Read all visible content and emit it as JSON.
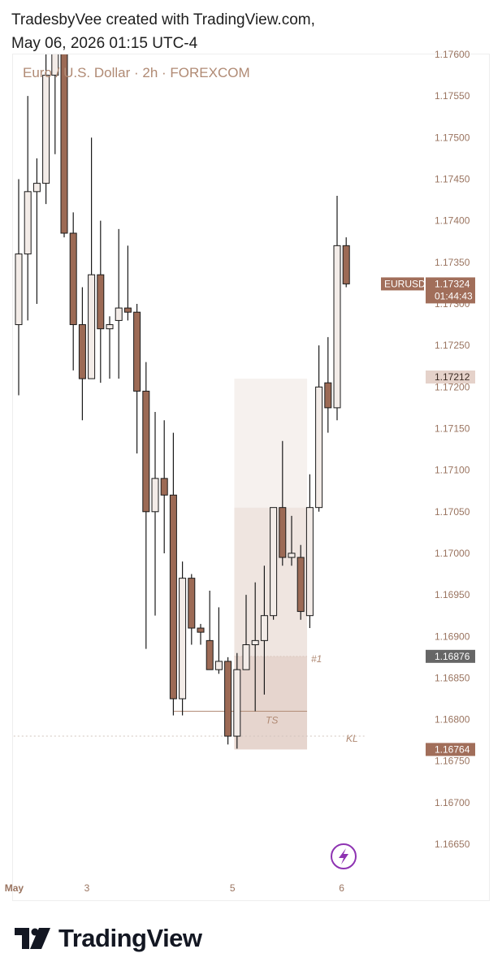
{
  "header": {
    "line1": "TradesbyVee created with TradingView.com,",
    "line2": "May 06, 2026 01:15 UTC-4"
  },
  "footer": {
    "brand": "TradingView"
  },
  "colors": {
    "bull_fill": "#f3ece8",
    "bear_fill": "#9c6a55",
    "candle_outline": "#1a1a1a",
    "axis_text": "#9a7460",
    "zone_upper": "#f6f1ee",
    "zone_middle": "#efe5e0",
    "zone_lower": "#e6d5ce",
    "level_line": "#b08a74",
    "price_badge": "#a16e5a",
    "gray_badge": "#666666",
    "light_badge": "#e5d2ca",
    "accent_purple": "#8e33b2"
  },
  "chart_data": {
    "type": "candlestick",
    "title": "Euro / U.S. Dollar · 2h · FOREXCOM",
    "symbol": "EURUSD",
    "ylim": [
      1.1661,
      1.176
    ],
    "y_ticks": [
      "1.17600",
      "1.17550",
      "1.17500",
      "1.17450",
      "1.17400",
      "1.17350",
      "1.17300",
      "1.17250",
      "1.17200",
      "1.17150",
      "1.17100",
      "1.17050",
      "1.17000",
      "1.16950",
      "1.16900",
      "1.16850",
      "1.16800",
      "1.16750",
      "1.16700",
      "1.16650"
    ],
    "x_ticks": [
      {
        "label": "May",
        "bar": -0.5
      },
      {
        "label": "3",
        "bar": 7.5
      },
      {
        "label": "5",
        "bar": 23.5
      },
      {
        "label": "6",
        "bar": 35.5
      }
    ],
    "candles": [
      {
        "o": 1.17275,
        "h": 1.1745,
        "l": 1.1719,
        "c": 1.1736
      },
      {
        "o": 1.1736,
        "h": 1.1755,
        "l": 1.1728,
        "c": 1.17435
      },
      {
        "o": 1.17435,
        "h": 1.17475,
        "l": 1.173,
        "c": 1.17445
      },
      {
        "o": 1.17445,
        "h": 1.1762,
        "l": 1.1742,
        "c": 1.17575
      },
      {
        "o": 1.17575,
        "h": 1.1763,
        "l": 1.1748,
        "c": 1.1762
      },
      {
        "o": 1.1762,
        "h": 1.1764,
        "l": 1.1738,
        "c": 1.17385
      },
      {
        "o": 1.17385,
        "h": 1.1741,
        "l": 1.1722,
        "c": 1.17275
      },
      {
        "o": 1.17275,
        "h": 1.1732,
        "l": 1.1716,
        "c": 1.1721
      },
      {
        "o": 1.1721,
        "h": 1.175,
        "l": 1.1721,
        "c": 1.17335
      },
      {
        "o": 1.17335,
        "h": 1.174,
        "l": 1.17205,
        "c": 1.1727
      },
      {
        "o": 1.1727,
        "h": 1.17285,
        "l": 1.1721,
        "c": 1.17275
      },
      {
        "o": 1.1728,
        "h": 1.1739,
        "l": 1.1721,
        "c": 1.17295
      },
      {
        "o": 1.17295,
        "h": 1.1737,
        "l": 1.1728,
        "c": 1.1729
      },
      {
        "o": 1.1729,
        "h": 1.173,
        "l": 1.1712,
        "c": 1.17195
      },
      {
        "o": 1.17195,
        "h": 1.1723,
        "l": 1.16885,
        "c": 1.1705
      },
      {
        "o": 1.1705,
        "h": 1.1717,
        "l": 1.16925,
        "c": 1.1709
      },
      {
        "o": 1.1709,
        "h": 1.1716,
        "l": 1.17,
        "c": 1.1707
      },
      {
        "o": 1.1707,
        "h": 1.17145,
        "l": 1.16805,
        "c": 1.16825
      },
      {
        "o": 1.16825,
        "h": 1.1699,
        "l": 1.16805,
        "c": 1.1697
      },
      {
        "o": 1.1697,
        "h": 1.16975,
        "l": 1.1689,
        "c": 1.1691
      },
      {
        "o": 1.1691,
        "h": 1.16915,
        "l": 1.1689,
        "c": 1.16905
      },
      {
        "o": 1.16895,
        "h": 1.16955,
        "l": 1.1686,
        "c": 1.1686
      },
      {
        "o": 1.1686,
        "h": 1.16935,
        "l": 1.16855,
        "c": 1.1687
      },
      {
        "o": 1.1687,
        "h": 1.16875,
        "l": 1.1677,
        "c": 1.1678
      },
      {
        "o": 1.1678,
        "h": 1.1688,
        "l": 1.16765,
        "c": 1.1686
      },
      {
        "o": 1.1686,
        "h": 1.1695,
        "l": 1.1686,
        "c": 1.1689
      },
      {
        "o": 1.1689,
        "h": 1.16965,
        "l": 1.1681,
        "c": 1.16895
      },
      {
        "o": 1.16895,
        "h": 1.16985,
        "l": 1.1683,
        "c": 1.16925
      },
      {
        "o": 1.16925,
        "h": 1.17055,
        "l": 1.1692,
        "c": 1.17055
      },
      {
        "o": 1.17055,
        "h": 1.17135,
        "l": 1.16985,
        "c": 1.16995
      },
      {
        "o": 1.16995,
        "h": 1.17045,
        "l": 1.16985,
        "c": 1.17
      },
      {
        "o": 1.16995,
        "h": 1.1701,
        "l": 1.1692,
        "c": 1.1693
      },
      {
        "o": 1.16925,
        "h": 1.17095,
        "l": 1.1691,
        "c": 1.17055
      },
      {
        "o": 1.17055,
        "h": 1.1725,
        "l": 1.1705,
        "c": 1.172
      },
      {
        "o": 1.17205,
        "h": 1.1726,
        "l": 1.17145,
        "c": 1.17175
      },
      {
        "o": 1.17175,
        "h": 1.1743,
        "l": 1.1716,
        "c": 1.1737
      },
      {
        "o": 1.1737,
        "h": 1.1738,
        "l": 1.1732,
        "c": 1.17324
      }
    ],
    "zones": [
      {
        "name": "upper-zone",
        "from_bar": 23.7,
        "to_bar": 31.7,
        "top": 1.1721,
        "bottom": 1.17055
      },
      {
        "name": "middle-zone",
        "from_bar": 23.7,
        "to_bar": 31.7,
        "top": 1.17055,
        "bottom": 1.16876
      },
      {
        "name": "lower-zone",
        "from_bar": 23.7,
        "to_bar": 31.7,
        "top": 1.16876,
        "bottom": 1.16764
      }
    ],
    "annotations": [
      {
        "name": "ts-line",
        "label": "TS",
        "price": 1.1681,
        "from_bar": 17,
        "to_bar": 31.7
      },
      {
        "name": "kl-line",
        "label": "KL",
        "price": 1.1678,
        "from_bar": -1,
        "to_bar": 38
      },
      {
        "name": "level-1",
        "label": "#1",
        "price": 1.16876,
        "from_bar": 23.7,
        "to_bar": 31.7
      }
    ],
    "price_badges": [
      {
        "name": "current-price",
        "price": 1.17324,
        "ticker": "EURUSD",
        "value": "1.17324",
        "timer": "01:44:43",
        "style": "dark"
      },
      {
        "name": "level-badge-upper",
        "price": 1.17212,
        "value": "1.17212",
        "style": "light"
      },
      {
        "name": "level-badge-1",
        "price": 1.16876,
        "value": "1.16876",
        "style": "gray"
      },
      {
        "name": "level-badge-lower",
        "price": 1.16764,
        "value": "1.16764",
        "style": "dark"
      }
    ]
  }
}
